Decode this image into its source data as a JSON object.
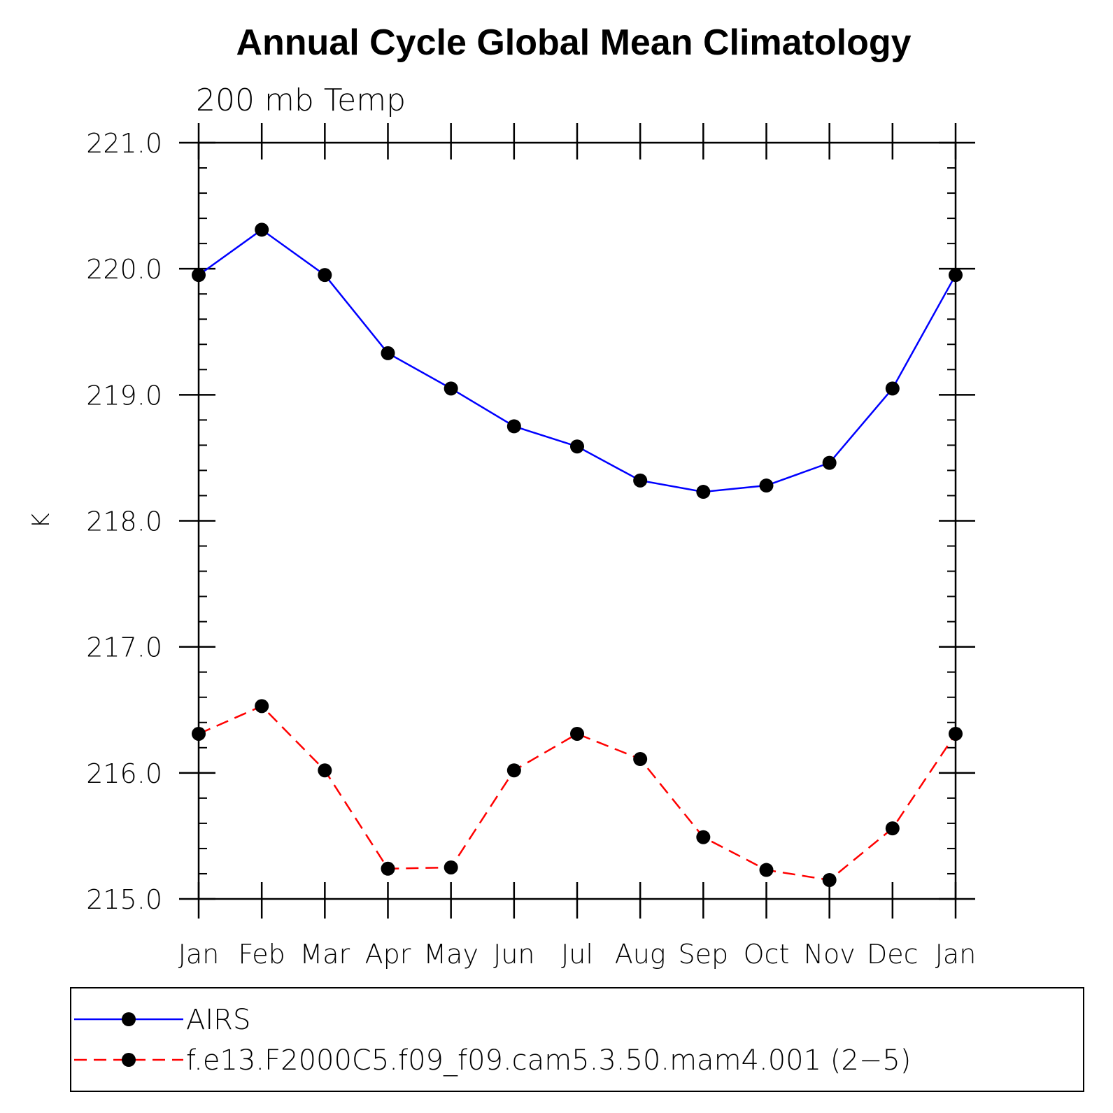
{
  "chart_data": {
    "type": "line",
    "title": "Annual Cycle Global Mean Climatology",
    "subtitle": "200 mb Temp",
    "xlabel": "",
    "ylabel": "K",
    "categories": [
      "Jan",
      "Feb",
      "Mar",
      "Apr",
      "May",
      "Jun",
      "Jul",
      "Aug",
      "Sep",
      "Oct",
      "Nov",
      "Dec",
      "Jan"
    ],
    "ylim": [
      215.0,
      221.0
    ],
    "yticks": [
      215.0,
      216.0,
      217.0,
      218.0,
      219.0,
      220.0,
      221.0
    ],
    "ytick_labels": [
      "215.0",
      "216.0",
      "217.0",
      "218.0",
      "219.0",
      "220.0",
      "221.0"
    ],
    "grid": false,
    "legend_position": "bottom",
    "series": [
      {
        "name": "AIRS",
        "color": "#0000ff",
        "line_style": "solid",
        "marker": "filled-circle",
        "values": [
          219.95,
          220.31,
          219.95,
          219.33,
          219.05,
          218.75,
          218.59,
          218.32,
          218.23,
          218.28,
          218.46,
          219.05,
          219.95
        ]
      },
      {
        "name": "f.e13.F2000C5.f09_f09.cam5.3.50.mam4.001 (2−5)",
        "color": "#ff0000",
        "line_style": "dashed",
        "marker": "filled-circle",
        "values": [
          216.31,
          216.53,
          216.02,
          215.24,
          215.25,
          216.02,
          216.31,
          216.11,
          215.49,
          215.23,
          215.15,
          215.56,
          216.31
        ]
      }
    ]
  }
}
